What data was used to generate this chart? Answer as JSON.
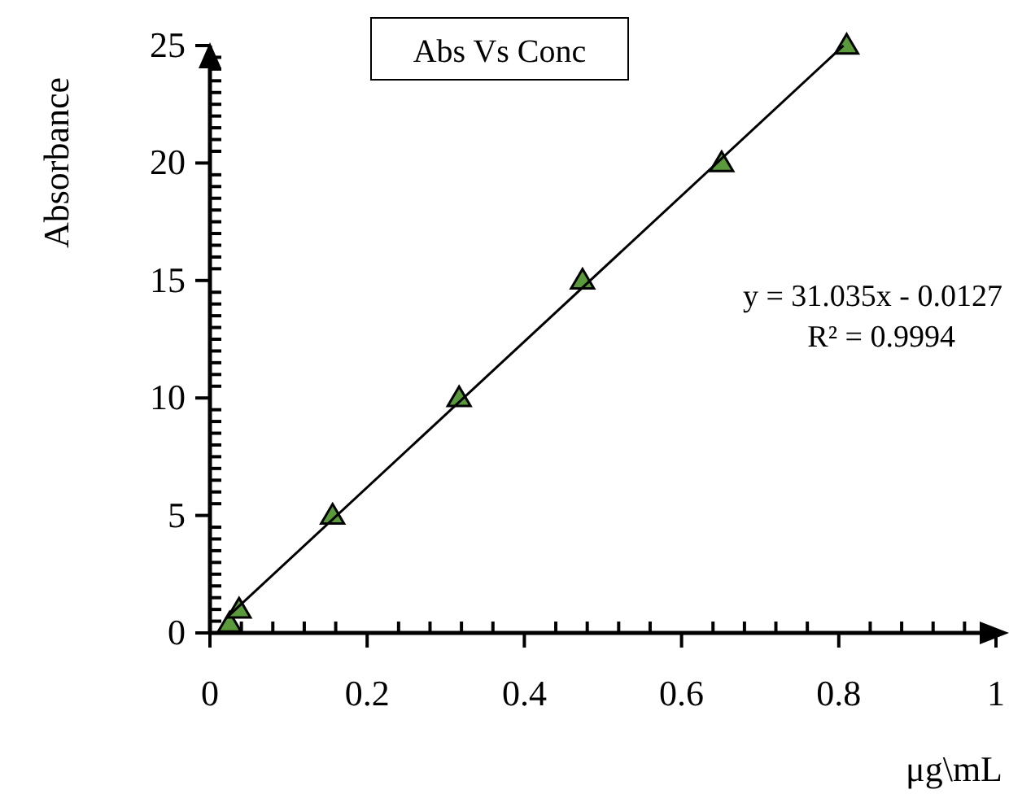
{
  "chart_data": {
    "type": "scatter",
    "title": "Abs Vs Conc",
    "xlabel": "μg\\mL",
    "ylabel": "Absorbance",
    "marker": "triangle",
    "grid": false,
    "series": [
      {
        "color": "#5b9a3c",
        "x": [
          0.025,
          0.037,
          0.156,
          0.317,
          0.474,
          0.651,
          0.81
        ],
        "values": [
          0.4,
          1,
          5,
          10,
          15,
          20,
          25
        ]
      },
      {
        "type": "line",
        "color": "#000000",
        "x": [
          0.02,
          0.806
        ],
        "values": [
          0.61,
          25
        ],
        "marker": "none"
      }
    ],
    "annotations": [
      "y = 31.035x - 0.0127",
      "R² = 0.9994"
    ],
    "xlim": [
      0,
      1
    ],
    "ylim": [
      0,
      25
    ],
    "xticks": [
      0,
      {
        "value": 0.04,
        "label": null
      },
      {
        "value": 0.08,
        "label": null
      },
      {
        "value": 0.12,
        "label": null
      },
      {
        "value": 0.16,
        "label": null
      },
      0.2,
      {
        "value": 0.24,
        "label": null
      },
      {
        "value": 0.28,
        "label": null
      },
      {
        "value": 0.32,
        "label": null
      },
      {
        "value": 0.36,
        "label": null
      },
      0.4,
      {
        "value": 0.44,
        "label": null
      },
      {
        "value": 0.48,
        "label": null
      },
      {
        "value": 0.52,
        "label": null
      },
      {
        "value": 0.56,
        "label": null
      },
      0.6,
      {
        "value": 0.64,
        "label": null
      },
      {
        "value": 0.68,
        "label": null
      },
      {
        "value": 0.72,
        "label": null
      },
      {
        "value": 0.76,
        "label": null
      },
      0.8,
      {
        "value": 0.84,
        "label": null
      },
      {
        "value": 0.88,
        "label": null
      },
      {
        "value": 0.92,
        "label": null
      },
      {
        "value": 0.96,
        "label": null
      },
      1
    ],
    "yticks": [
      0,
      {
        "value": 0.5,
        "label": null
      },
      {
        "value": 1,
        "label": null
      },
      {
        "value": 1.5,
        "label": null
      },
      {
        "value": 2,
        "label": null
      },
      {
        "value": 2.5,
        "label": null
      },
      {
        "value": 3,
        "label": null
      },
      {
        "value": 3.5,
        "label": null
      },
      {
        "value": 4,
        "label": null
      },
      {
        "value": 4.5,
        "label": null
      },
      5,
      {
        "value": 5.5,
        "label": null
      },
      {
        "value": 6,
        "label": null
      },
      {
        "value": 6.5,
        "label": null
      },
      {
        "value": 7,
        "label": null
      },
      {
        "value": 7.5,
        "label": null
      },
      {
        "value": 8,
        "label": null
      },
      {
        "value": 8.5,
        "label": null
      },
      {
        "value": 9,
        "label": null
      },
      {
        "value": 9.5,
        "label": null
      },
      10,
      {
        "value": 10.5,
        "label": null
      },
      {
        "value": 11,
        "label": null
      },
      {
        "value": 11.5,
        "label": null
      },
      {
        "value": 12,
        "label": null
      },
      {
        "value": 12.5,
        "label": null
      },
      {
        "value": 13,
        "label": null
      },
      {
        "value": 13.5,
        "label": null
      },
      {
        "value": 14,
        "label": null
      },
      {
        "value": 14.5,
        "label": null
      },
      15,
      {
        "value": 15.5,
        "label": null
      },
      {
        "value": 16,
        "label": null
      },
      {
        "value": 16.5,
        "label": null
      },
      {
        "value": 17,
        "label": null
      },
      {
        "value": 17.5,
        "label": null
      },
      {
        "value": 18,
        "label": null
      },
      {
        "value": 18.5,
        "label": null
      },
      {
        "value": 19,
        "label": null
      },
      {
        "value": 19.5,
        "label": null
      },
      20,
      {
        "value": 20.5,
        "label": null
      },
      {
        "value": 21,
        "label": null
      },
      {
        "value": 21.5,
        "label": null
      },
      {
        "value": 22,
        "label": null
      },
      {
        "value": 22.5,
        "label": null
      },
      {
        "value": 23,
        "label": null
      },
      {
        "value": 23.5,
        "label": null
      },
      {
        "value": 24,
        "label": null
      },
      {
        "value": 24.5,
        "label": null
      },
      25
    ]
  }
}
